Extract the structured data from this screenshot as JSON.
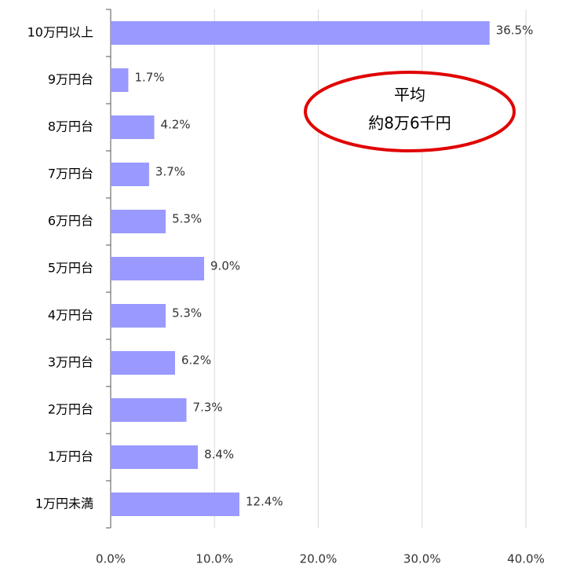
{
  "chart_data": {
    "type": "barh",
    "categories": [
      "10万円以上",
      "9万円台",
      "8万円台",
      "7万円台",
      "6万円台",
      "5万円台",
      "4万円台",
      "3万円台",
      "2万円台",
      "1万円台",
      "1万円未満"
    ],
    "values": [
      36.5,
      1.7,
      4.2,
      3.7,
      5.3,
      9.0,
      5.3,
      6.2,
      7.3,
      8.4,
      12.4
    ],
    "value_labels": [
      "36.5%",
      "1.7%",
      "4.2%",
      "3.7%",
      "5.3%",
      "9.0%",
      "5.3%",
      "6.2%",
      "7.3%",
      "8.4%",
      "12.4%"
    ],
    "color": "#9999ff",
    "xlim": [
      0,
      40
    ],
    "xticks": [
      {
        "value": 0,
        "label": "0.0%"
      },
      {
        "value": 10,
        "label": "10.0%"
      },
      {
        "value": 20,
        "label": "20.0%"
      },
      {
        "value": 30,
        "label": "30.0%"
      },
      {
        "value": 40,
        "label": "40.0%"
      }
    ],
    "grid": true,
    "annotation": [
      "平均",
      "約8万6千円"
    ]
  }
}
